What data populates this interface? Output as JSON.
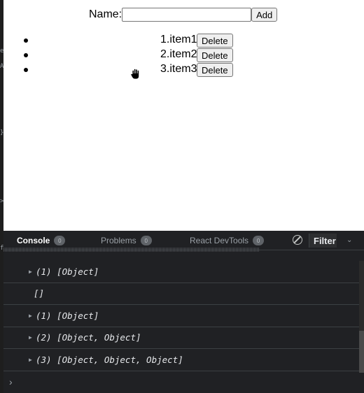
{
  "preview": {
    "name_label": "Name:",
    "name_input_value": "",
    "add_label": "Add",
    "items": [
      {
        "text": "1.item1",
        "delete_label": "Delete"
      },
      {
        "text": "2.item2",
        "delete_label": "Delete"
      },
      {
        "text": "3.item3",
        "delete_label": "Delete"
      }
    ]
  },
  "devtools": {
    "tabs": [
      {
        "label": "Console",
        "count": "0"
      },
      {
        "label": "Problems",
        "count": "0"
      },
      {
        "label": "React DevTools",
        "count": "0"
      }
    ],
    "filter_label": "Filter",
    "logs": [
      {
        "expandable": true,
        "text": "(1) [Object]"
      },
      {
        "expandable": false,
        "text": "[]"
      },
      {
        "expandable": true,
        "text": "(1) [Object]"
      },
      {
        "expandable": true,
        "text": "(2) [Object, Object]"
      },
      {
        "expandable": true,
        "text": "(3) [Object, Object, Object]"
      }
    ],
    "prompt_symbol": "›"
  },
  "left_strip_glyphs": [
    "e",
    "A",
    "}",
    ">",
    "f"
  ]
}
